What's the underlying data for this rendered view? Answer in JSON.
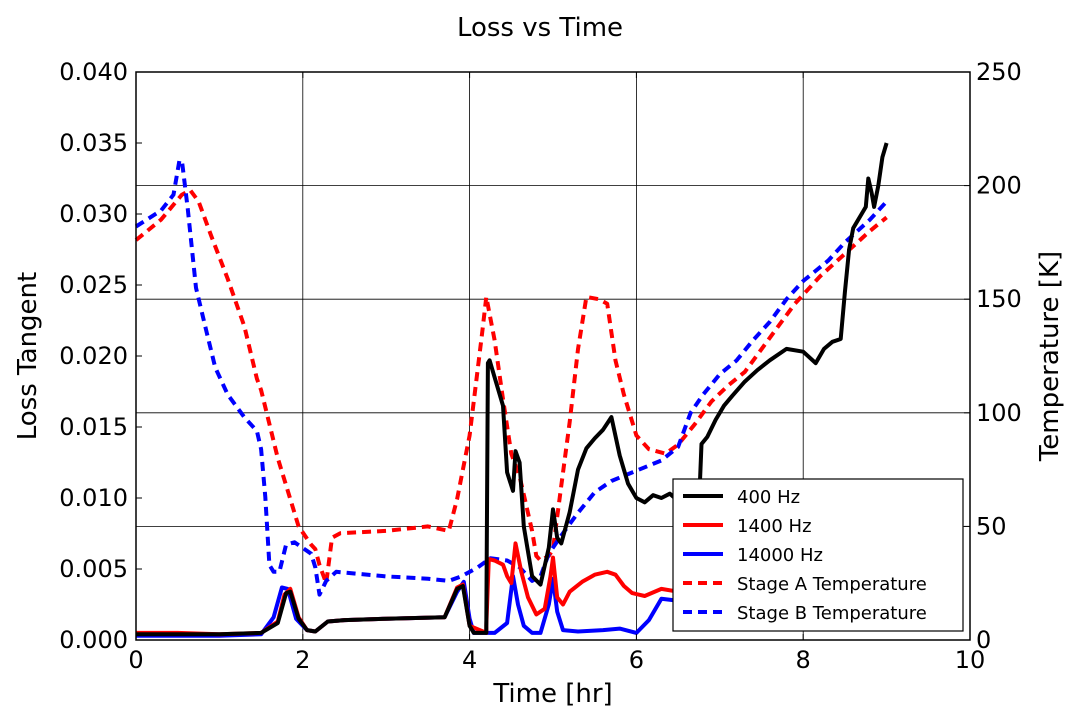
{
  "chart_data": {
    "type": "line",
    "title": "Loss vs Time",
    "xlabel": "Time [hr]",
    "ylabel": "Loss Tangent",
    "ylabel_right": "Temperature [K]",
    "xlim": [
      0,
      10
    ],
    "ylim": [
      0,
      0.04
    ],
    "ylim_right": [
      0,
      250
    ],
    "x_ticks": [
      "0",
      "2",
      "4",
      "6",
      "8",
      "10"
    ],
    "y_ticks": [
      "0.000",
      "0.005",
      "0.010",
      "0.015",
      "0.020",
      "0.025",
      "0.030",
      "0.035",
      "0.040"
    ],
    "y_ticks_right": [
      "0",
      "50",
      "100",
      "150",
      "200",
      "250"
    ],
    "grid": true,
    "legend_position": "lower-right",
    "series": [
      {
        "name": " 400 Hz",
        "axis": "left",
        "style": "solid",
        "color": "#000000",
        "points": [
          [
            0,
            0.0004
          ],
          [
            1.0,
            0.0004
          ],
          [
            1.5,
            0.0005
          ],
          [
            1.7,
            0.0012
          ],
          [
            1.8,
            0.0033
          ],
          [
            1.85,
            0.0034
          ],
          [
            1.95,
            0.0015
          ],
          [
            2.05,
            0.0007
          ],
          [
            2.15,
            0.0006
          ],
          [
            2.3,
            0.0013
          ],
          [
            2.5,
            0.0014
          ],
          [
            3.0,
            0.0015
          ],
          [
            3.7,
            0.0016
          ],
          [
            3.85,
            0.0036
          ],
          [
            3.92,
            0.0038
          ],
          [
            4.0,
            0.001
          ],
          [
            4.05,
            0.0005
          ],
          [
            4.2,
            0.0005
          ],
          [
            4.2,
            0.001
          ],
          [
            4.22,
            0.0195
          ],
          [
            4.24,
            0.0197
          ],
          [
            4.3,
            0.0185
          ],
          [
            4.4,
            0.0165
          ],
          [
            4.45,
            0.0118
          ],
          [
            4.52,
            0.0105
          ],
          [
            4.55,
            0.0133
          ],
          [
            4.6,
            0.0125
          ],
          [
            4.65,
            0.008
          ],
          [
            4.75,
            0.0045
          ],
          [
            4.85,
            0.0039
          ],
          [
            4.95,
            0.0065
          ],
          [
            5.0,
            0.0092
          ],
          [
            5.05,
            0.0072
          ],
          [
            5.1,
            0.0068
          ],
          [
            5.2,
            0.009
          ],
          [
            5.3,
            0.012
          ],
          [
            5.4,
            0.0135
          ],
          [
            5.5,
            0.0142
          ],
          [
            5.6,
            0.0148
          ],
          [
            5.7,
            0.0157
          ],
          [
            5.8,
            0.013
          ],
          [
            5.9,
            0.011
          ],
          [
            6.0,
            0.01
          ],
          [
            6.1,
            0.0097
          ],
          [
            6.2,
            0.0102
          ],
          [
            6.3,
            0.01
          ],
          [
            6.4,
            0.0103
          ],
          [
            6.5,
            0.0098
          ],
          [
            6.65,
            0.01
          ],
          [
            6.75,
            0.0095
          ],
          [
            6.78,
            0.0138
          ],
          [
            6.85,
            0.0143
          ],
          [
            6.95,
            0.0155
          ],
          [
            7.05,
            0.0165
          ],
          [
            7.15,
            0.0172
          ],
          [
            7.3,
            0.0182
          ],
          [
            7.45,
            0.019
          ],
          [
            7.6,
            0.0197
          ],
          [
            7.8,
            0.0205
          ],
          [
            8.0,
            0.0203
          ],
          [
            8.15,
            0.0195
          ],
          [
            8.25,
            0.0205
          ],
          [
            8.35,
            0.021
          ],
          [
            8.45,
            0.0212
          ],
          [
            8.5,
            0.0245
          ],
          [
            8.55,
            0.0275
          ],
          [
            8.6,
            0.029
          ],
          [
            8.7,
            0.03
          ],
          [
            8.75,
            0.0305
          ],
          [
            8.78,
            0.0325
          ],
          [
            8.82,
            0.0315
          ],
          [
            8.85,
            0.0305
          ],
          [
            8.9,
            0.032
          ],
          [
            8.95,
            0.034
          ],
          [
            9.0,
            0.035
          ]
        ]
      },
      {
        "name": " 1400 Hz",
        "axis": "left",
        "style": "solid",
        "color": "#ff0000",
        "points": [
          [
            0,
            0.0005
          ],
          [
            0.5,
            0.0005
          ],
          [
            1.0,
            0.0004
          ],
          [
            1.5,
            0.0005
          ],
          [
            1.7,
            0.0013
          ],
          [
            1.78,
            0.0032
          ],
          [
            1.85,
            0.0036
          ],
          [
            1.95,
            0.0016
          ],
          [
            2.05,
            0.0007
          ],
          [
            2.15,
            0.0006
          ],
          [
            2.3,
            0.0013
          ],
          [
            2.5,
            0.0014
          ],
          [
            3.0,
            0.0015
          ],
          [
            3.7,
            0.0016
          ],
          [
            3.85,
            0.0037
          ],
          [
            3.92,
            0.0039
          ],
          [
            4.0,
            0.001
          ],
          [
            4.2,
            0.0005
          ],
          [
            4.2,
            0.001
          ],
          [
            4.23,
            0.0057
          ],
          [
            4.3,
            0.0056
          ],
          [
            4.4,
            0.0053
          ],
          [
            4.45,
            0.0045
          ],
          [
            4.5,
            0.004
          ],
          [
            4.55,
            0.0068
          ],
          [
            4.62,
            0.0048
          ],
          [
            4.7,
            0.003
          ],
          [
            4.8,
            0.0018
          ],
          [
            4.9,
            0.0022
          ],
          [
            4.97,
            0.0045
          ],
          [
            5.0,
            0.0058
          ],
          [
            5.05,
            0.003
          ],
          [
            5.12,
            0.0025
          ],
          [
            5.2,
            0.0034
          ],
          [
            5.35,
            0.0041
          ],
          [
            5.5,
            0.0046
          ],
          [
            5.65,
            0.0048
          ],
          [
            5.75,
            0.0046
          ],
          [
            5.85,
            0.0038
          ],
          [
            5.95,
            0.0033
          ],
          [
            6.1,
            0.0031
          ],
          [
            6.3,
            0.0036
          ],
          [
            6.5,
            0.0034
          ],
          [
            6.7,
            0.0035
          ],
          [
            6.9,
            0.0028
          ],
          [
            7.05,
            0.0022
          ]
        ]
      },
      {
        "name": " 14000 Hz",
        "axis": "left",
        "style": "solid",
        "color": "#0000ff",
        "points": [
          [
            0,
            0.0003
          ],
          [
            1.0,
            0.0003
          ],
          [
            1.5,
            0.0004
          ],
          [
            1.65,
            0.0016
          ],
          [
            1.75,
            0.0037
          ],
          [
            1.82,
            0.0036
          ],
          [
            1.92,
            0.0015
          ],
          [
            2.05,
            0.0007
          ],
          [
            2.15,
            0.0006
          ],
          [
            2.3,
            0.0013
          ],
          [
            2.5,
            0.0014
          ],
          [
            3.0,
            0.0015
          ],
          [
            3.7,
            0.0016
          ],
          [
            3.85,
            0.0034
          ],
          [
            3.93,
            0.0041
          ],
          [
            4.0,
            0.0015
          ],
          [
            4.05,
            0.0005
          ],
          [
            4.3,
            0.0005
          ],
          [
            4.45,
            0.0012
          ],
          [
            4.52,
            0.0045
          ],
          [
            4.58,
            0.0025
          ],
          [
            4.65,
            0.001
          ],
          [
            4.75,
            0.0005
          ],
          [
            4.85,
            0.0005
          ],
          [
            4.95,
            0.0025
          ],
          [
            5.0,
            0.0043
          ],
          [
            5.05,
            0.002
          ],
          [
            5.12,
            0.0007
          ],
          [
            5.3,
            0.0006
          ],
          [
            5.6,
            0.0007
          ],
          [
            5.8,
            0.0008
          ],
          [
            6.0,
            0.0005
          ],
          [
            6.15,
            0.0014
          ],
          [
            6.3,
            0.0029
          ],
          [
            6.45,
            0.0028
          ],
          [
            6.6,
            0.0019
          ],
          [
            6.75,
            0.0011
          ],
          [
            6.9,
            0.0008
          ],
          [
            7.05,
            0.0008
          ]
        ]
      },
      {
        "name": "Stage A Temperature",
        "axis": "right",
        "style": "dashed",
        "color": "#ff0000",
        "points": [
          [
            0,
            176
          ],
          [
            0.3,
            185
          ],
          [
            0.55,
            196
          ],
          [
            0.65,
            198
          ],
          [
            0.75,
            193
          ],
          [
            0.9,
            178
          ],
          [
            1.1,
            159
          ],
          [
            1.3,
            138
          ],
          [
            1.45,
            115
          ],
          [
            1.5,
            110
          ],
          [
            1.7,
            80
          ],
          [
            1.85,
            62
          ],
          [
            1.95,
            50
          ],
          [
            2.1,
            42
          ],
          [
            2.15,
            40
          ],
          [
            2.2,
            33
          ],
          [
            2.28,
            25
          ],
          [
            2.35,
            45
          ],
          [
            2.45,
            47
          ],
          [
            3.0,
            48
          ],
          [
            3.5,
            50
          ],
          [
            3.75,
            48
          ],
          [
            3.85,
            62
          ],
          [
            4.0,
            90
          ],
          [
            4.15,
            135
          ],
          [
            4.2,
            151
          ],
          [
            4.3,
            132
          ],
          [
            4.4,
            106
          ],
          [
            4.5,
            82
          ],
          [
            4.6,
            72
          ],
          [
            4.75,
            48
          ],
          [
            4.8,
            37
          ],
          [
            4.85,
            35
          ],
          [
            4.95,
            37
          ],
          [
            5.0,
            40
          ],
          [
            5.1,
            68
          ],
          [
            5.2,
            96
          ],
          [
            5.3,
            128
          ],
          [
            5.4,
            151
          ],
          [
            5.55,
            150
          ],
          [
            5.65,
            148
          ],
          [
            5.75,
            123
          ],
          [
            5.85,
            108
          ],
          [
            6.0,
            90
          ],
          [
            6.15,
            84
          ],
          [
            6.35,
            82
          ],
          [
            6.5,
            86
          ],
          [
            6.7,
            95
          ],
          [
            6.9,
            105
          ],
          [
            7.1,
            112
          ],
          [
            7.3,
            118
          ],
          [
            7.6,
            133
          ],
          [
            7.9,
            148
          ],
          [
            8.2,
            160
          ],
          [
            8.5,
            170
          ],
          [
            8.8,
            180
          ],
          [
            9.0,
            186
          ]
        ]
      },
      {
        "name": "Stage B Temperature",
        "axis": "right",
        "style": "dashed",
        "color": "#0000ff",
        "points": [
          [
            0,
            182
          ],
          [
            0.3,
            189
          ],
          [
            0.45,
            196
          ],
          [
            0.52,
            211
          ],
          [
            0.55,
            211
          ],
          [
            0.62,
            190
          ],
          [
            0.72,
            155
          ],
          [
            0.85,
            135
          ],
          [
            0.95,
            120
          ],
          [
            1.1,
            108
          ],
          [
            1.3,
            98
          ],
          [
            1.45,
            92
          ],
          [
            1.5,
            84
          ],
          [
            1.55,
            63
          ],
          [
            1.6,
            33
          ],
          [
            1.65,
            30
          ],
          [
            1.72,
            30
          ],
          [
            1.8,
            42
          ],
          [
            1.9,
            43
          ],
          [
            2.1,
            38
          ],
          [
            2.15,
            32
          ],
          [
            2.2,
            20
          ],
          [
            2.28,
            26
          ],
          [
            2.4,
            30
          ],
          [
            3.0,
            28
          ],
          [
            3.5,
            27
          ],
          [
            3.75,
            26
          ],
          [
            3.9,
            28
          ],
          [
            4.1,
            32
          ],
          [
            4.25,
            36
          ],
          [
            4.45,
            35
          ],
          [
            4.6,
            32
          ],
          [
            4.75,
            26
          ],
          [
            4.85,
            28
          ],
          [
            4.95,
            38
          ],
          [
            5.1,
            46
          ],
          [
            5.3,
            56
          ],
          [
            5.5,
            65
          ],
          [
            5.7,
            70
          ],
          [
            5.9,
            73
          ],
          [
            6.1,
            76
          ],
          [
            6.3,
            79
          ],
          [
            6.5,
            85
          ],
          [
            6.65,
            100
          ],
          [
            6.8,
            108
          ],
          [
            7.0,
            117
          ],
          [
            7.2,
            123
          ],
          [
            7.4,
            132
          ],
          [
            7.6,
            140
          ],
          [
            7.8,
            150
          ],
          [
            8.0,
            158
          ],
          [
            8.3,
            167
          ],
          [
            8.5,
            175
          ],
          [
            8.8,
            185
          ],
          [
            9.0,
            193
          ]
        ]
      }
    ]
  }
}
